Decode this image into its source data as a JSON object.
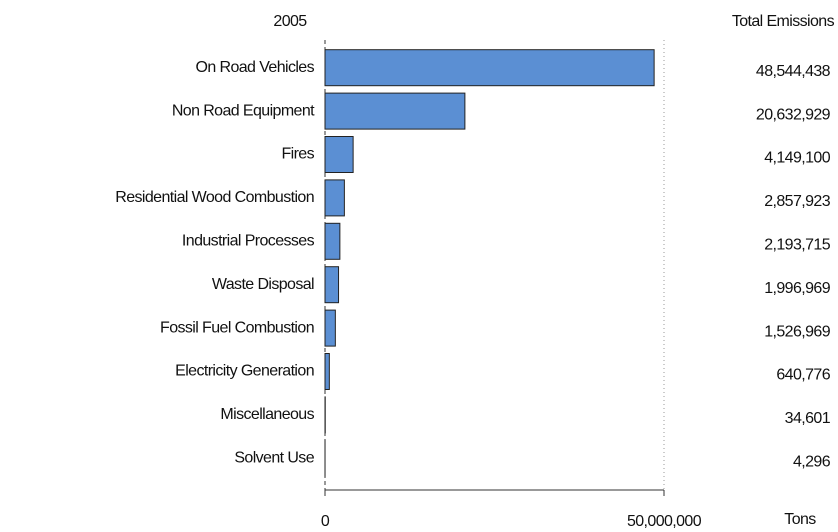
{
  "chart_data": {
    "type": "bar",
    "orientation": "horizontal",
    "title": "2005",
    "value_column_title": "Total Emissions",
    "x_label": "Tons",
    "categories": [
      "On Road Vehicles",
      "Non Road Equipment",
      "Fires",
      "Residential Wood Combustion",
      "Industrial Processes",
      "Waste Disposal",
      "Fossil Fuel Combustion",
      "Electricity Generation",
      "Miscellaneous",
      "Solvent Use"
    ],
    "values": [
      48544438,
      20632929,
      4149100,
      2857923,
      2193715,
      1996969,
      1526969,
      640776,
      34601,
      4296
    ],
    "value_labels": [
      "48,544,438",
      "20,632,929",
      "4,149,100",
      "2,857,923",
      "2,193,715",
      "1,996,969",
      "1,526,969",
      "640,776",
      "34,601",
      "4,296"
    ],
    "color": "#5b8fd3",
    "xlim": [
      0,
      50000000
    ],
    "xticks": [
      0,
      {
        "value": 50000000,
        "label": "50,000,000"
      }
    ],
    "grid": true
  }
}
